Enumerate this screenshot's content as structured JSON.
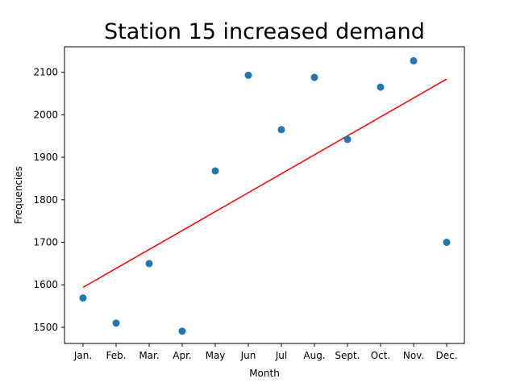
{
  "chart_data": {
    "type": "scatter",
    "title": "Station 15 increased demand",
    "xlabel": "Month",
    "ylabel": "Frequencies",
    "categories": [
      "Jan.",
      "Feb.",
      "Mar.",
      "Apr.",
      "May",
      "Jun",
      "Jul",
      "Aug.",
      "Sept.",
      "Oct.",
      "Nov.",
      "Dec."
    ],
    "series": [
      {
        "values": [
          1569,
          1510,
          1650,
          1491,
          1868,
          2093,
          1965,
          2088,
          1942,
          2065,
          2127,
          1700
        ],
        "color": "#1f77b4",
        "marker": "circle"
      }
    ],
    "trend_line": {
      "start": 1594,
      "end": 2084,
      "color": "#ff0000"
    },
    "ylim": [
      1462,
      2160
    ],
    "yticks": [
      1500,
      1600,
      1700,
      1800,
      1900,
      2000,
      2100
    ],
    "grid": false,
    "legend": "none"
  }
}
